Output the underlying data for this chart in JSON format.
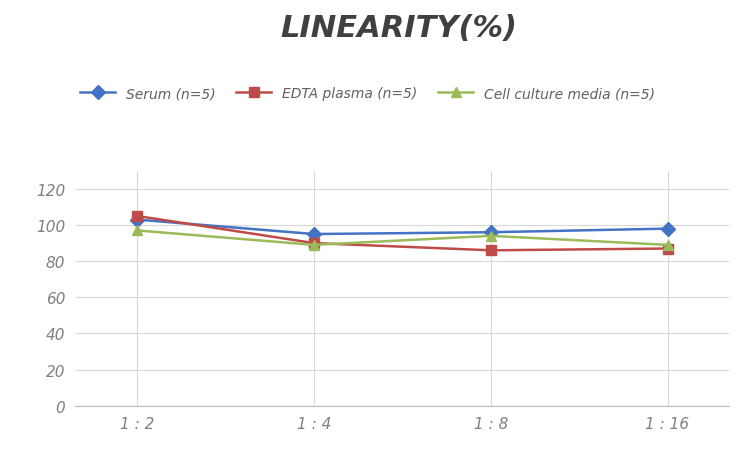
{
  "title": "LINEARITY(%)",
  "x_labels": [
    "1 : 2",
    "1 : 4",
    "1 : 8",
    "1 : 16"
  ],
  "x_positions": [
    0,
    1,
    2,
    3
  ],
  "series": [
    {
      "label": "Serum (n=5)",
      "values": [
        103,
        95,
        96,
        98
      ],
      "color": "#4472C4",
      "marker": "D",
      "marker_size": 7,
      "linewidth": 1.8
    },
    {
      "label": "EDTA plasma (n=5)",
      "values": [
        105,
        90,
        86,
        87
      ],
      "color": "#BE4B48",
      "marker": "s",
      "marker_size": 7,
      "linewidth": 1.8
    },
    {
      "label": "Cell culture media (n=5)",
      "values": [
        97,
        89,
        94,
        89
      ],
      "color": "#9BBB59",
      "marker": "^",
      "marker_size": 7,
      "linewidth": 1.8
    }
  ],
  "ylim": [
    0,
    130
  ],
  "yticks": [
    0,
    20,
    40,
    60,
    80,
    100,
    120
  ],
  "grid_color": "#D8D8D8",
  "background_color": "#FFFFFF",
  "title_fontsize": 22,
  "title_color": "#404040",
  "legend_fontsize": 10,
  "tick_fontsize": 11,
  "tick_color": "#808080"
}
